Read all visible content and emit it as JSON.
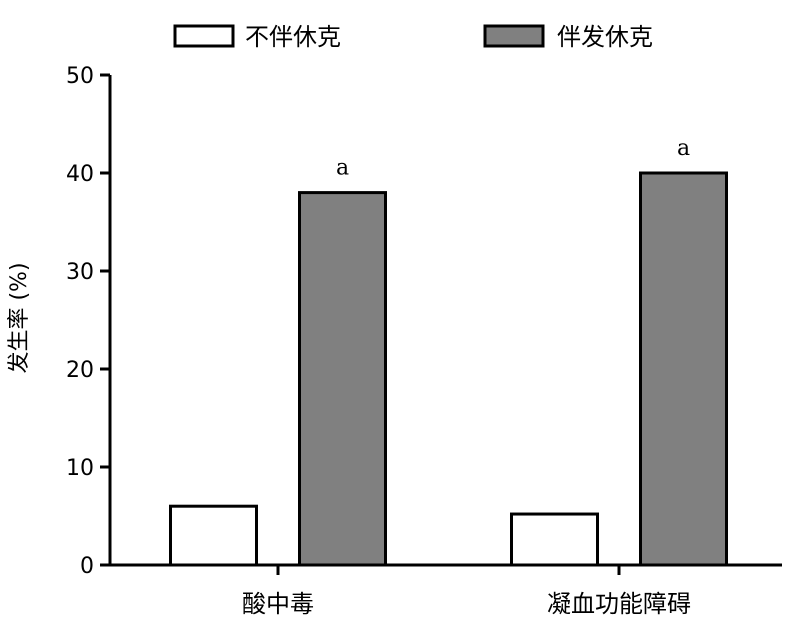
{
  "chart_data": {
    "type": "bar",
    "title": "",
    "xlabel": "",
    "ylabel": "发生率 (%)",
    "ylim": [
      0,
      50
    ],
    "yticks": [
      0,
      10,
      20,
      30,
      40,
      50
    ],
    "categories": [
      "酸中毒",
      "凝血功能障碍"
    ],
    "series": [
      {
        "name": "不伴休克",
        "values": [
          6,
          5.2
        ],
        "color": "#ffffff"
      },
      {
        "name": "伴发休克",
        "values": [
          38,
          40
        ],
        "color": "#808080"
      }
    ],
    "annotations": [
      {
        "category_index": 0,
        "series_index": 1,
        "text": "a"
      },
      {
        "category_index": 1,
        "series_index": 1,
        "text": "a"
      }
    ],
    "legend": "top",
    "grid": false
  }
}
